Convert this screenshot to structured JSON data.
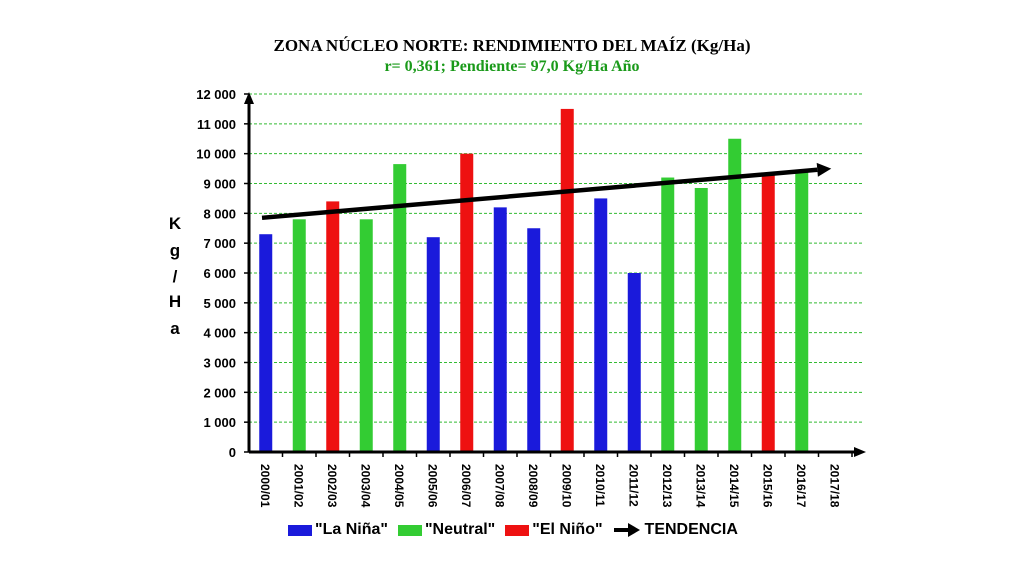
{
  "title": "ZONA NÚCLEO NORTE: RENDIMIENTO DEL MAÍZ  (Kg/Ha)",
  "subtitle": "r= 0,361; Pendiente= 97,0 Kg/Ha Año",
  "ylabel_letters": [
    "K",
    "g",
    "/",
    "H",
    "a"
  ],
  "colors": {
    "la_nina": "#1a1adb",
    "neutral": "#33cc33",
    "el_nino": "#ee1111",
    "trend": "#000000",
    "grid": "#33bb33"
  },
  "legend": [
    {
      "key": "la_nina",
      "label": "\"La Niña\""
    },
    {
      "key": "neutral",
      "label": "\"Neutral\""
    },
    {
      "key": "el_nino",
      "label": "\"El Niño\""
    },
    {
      "key": "trend",
      "label": "TENDENCIA"
    }
  ],
  "chart_data": {
    "type": "bar",
    "title": "ZONA NÚCLEO NORTE: RENDIMIENTO DEL MAÍZ  (Kg/Ha)",
    "subtitle": "r= 0,361; Pendiente= 97,0 Kg/Ha Año",
    "ylabel": "Kg/Ha",
    "ylim": [
      0,
      12000
    ],
    "yticks": [
      "0",
      "1 000",
      "2 000",
      "3 000",
      "4 000",
      "5 000",
      "6 000",
      "7 000",
      "8 000",
      "9 000",
      "10 000",
      "11 000",
      "12 000"
    ],
    "grid": true,
    "legend_position": "bottom",
    "categories": [
      "2000/01",
      "2001/02",
      "2002/03",
      "2003/04",
      "2004/05",
      "2005/06",
      "2006/07",
      "2007/08",
      "2008/09",
      "2009/10",
      "2010/11",
      "2011/12",
      "2012/13",
      "2013/14",
      "2014/15",
      "2015/16",
      "2016/17",
      "2017/18"
    ],
    "values": [
      7300,
      7800,
      8400,
      7800,
      9650,
      7200,
      10000,
      8200,
      7500,
      11500,
      8500,
      6000,
      9200,
      8850,
      10500,
      9300,
      9450,
      null
    ],
    "phase": [
      "la_nina",
      "neutral",
      "el_nino",
      "neutral",
      "neutral",
      "la_nina",
      "el_nino",
      "la_nina",
      "la_nina",
      "el_nino",
      "la_nina",
      "la_nina",
      "neutral",
      "neutral",
      "neutral",
      "el_nino",
      "neutral",
      null
    ],
    "trend": {
      "name": "TENDENCIA",
      "start": {
        "x": "2000/01",
        "y": 7850
      },
      "end": {
        "x": "2017/18",
        "y": 9500
      }
    }
  }
}
